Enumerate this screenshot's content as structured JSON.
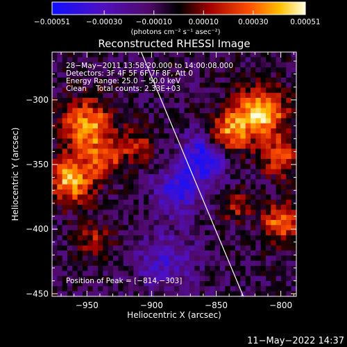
{
  "chart_data": {
    "type": "heatmap",
    "title": "Reconstructed RHESSI Image",
    "xlabel": "Heliocentric X (arcsec)",
    "ylabel": "Heliocentric Y (arcsec)",
    "xlim": [
      -977,
      -788
    ],
    "ylim": [
      -452,
      -263
    ],
    "x_ticks": [
      -950,
      -900,
      -850,
      -800
    ],
    "x_tick_labels": [
      "−950",
      "−900",
      "−850",
      "−800"
    ],
    "y_ticks": [
      -300,
      -350,
      -400,
      -450
    ],
    "y_tick_labels": [
      "−300",
      "−350",
      "−400",
      "−450"
    ],
    "colorbar": {
      "range": [
        -0.00051,
        0.00051
      ],
      "ticks": [
        -0.00051,
        -0.0003,
        -0.0001,
        0.0001,
        0.0003,
        0.00051
      ],
      "tick_labels": [
        "−0.00051",
        "−0.00030",
        "−0.00010",
        "0.00010",
        "0.00030",
        "0.00051"
      ],
      "unit_label": "(photons cm⁻² s⁻¹ asec⁻²)"
    },
    "annotations": [
      "28−May−2011 13:58:20.000 to 14:00:08.000",
      "Detectors: 3F 4F 5F 6F 7F 8F, Att 0",
      "Energy Range: 25.0 − 50.0 keV",
      "Clean    Total counts: 2.33E+03"
    ],
    "peak_label": "Position of Peak = [−814,−303]",
    "limb_line": {
      "points": [
        [
          -908,
          -263
        ],
        [
          -829,
          -452
        ]
      ]
    },
    "sources": [
      {
        "x": -950,
        "y": -320,
        "sigma": 14,
        "amp": 0.00045
      },
      {
        "x": -962,
        "y": -362,
        "sigma": 12,
        "amp": 0.0005
      },
      {
        "x": -935,
        "y": -345,
        "sigma": 10,
        "amp": 0.0003
      },
      {
        "x": -910,
        "y": -335,
        "sigma": 9,
        "amp": 0.00025
      },
      {
        "x": -815,
        "y": -310,
        "sigma": 14,
        "amp": 0.00051
      },
      {
        "x": -840,
        "y": -325,
        "sigma": 11,
        "amp": 0.0004
      },
      {
        "x": -800,
        "y": -345,
        "sigma": 10,
        "amp": 0.00035
      },
      {
        "x": -800,
        "y": -395,
        "sigma": 10,
        "amp": 0.0004
      },
      {
        "x": -835,
        "y": -382,
        "sigma": 8,
        "amp": 0.00025
      },
      {
        "x": -945,
        "y": -410,
        "sigma": 10,
        "amp": 0.00022
      },
      {
        "x": -880,
        "y": -370,
        "sigma": 13,
        "amp": -0.0003
      },
      {
        "x": -860,
        "y": -345,
        "sigma": 12,
        "amp": -0.0004
      },
      {
        "x": -890,
        "y": -425,
        "sigma": 16,
        "amp": -0.00022
      }
    ]
  },
  "footer": {
    "date": "11−May−2022 14:37"
  }
}
